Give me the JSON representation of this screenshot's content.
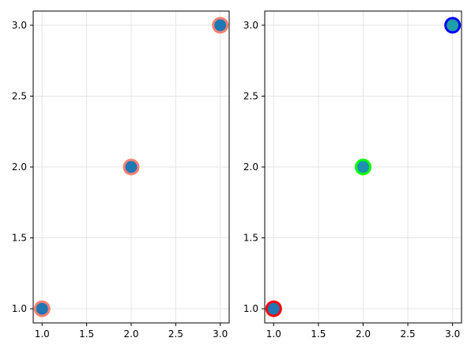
{
  "chart_data": [
    {
      "type": "scatter",
      "title": "",
      "xlabel": "",
      "ylabel": "",
      "xlim": [
        0.9,
        3.1
      ],
      "ylim": [
        0.9,
        3.1
      ],
      "grid": true,
      "x_ticks": [
        1.0,
        1.5,
        2.0,
        2.5,
        3.0
      ],
      "y_ticks": [
        1.0,
        1.5,
        2.0,
        2.5,
        3.0
      ],
      "x_tick_labels": [
        "1.0",
        "1.5",
        "2.0",
        "2.5",
        "3.0"
      ],
      "y_tick_labels": [
        "1.0",
        "1.5",
        "2.0",
        "2.5",
        "3.0"
      ],
      "series": [
        {
          "x": [
            1,
            2,
            3
          ],
          "y": [
            1,
            2,
            3
          ],
          "fill_color": "#1f77b4",
          "stroke_colors": [
            "#fa8072",
            "#fa8072",
            "#fa8072"
          ]
        }
      ]
    },
    {
      "type": "scatter",
      "title": "",
      "xlabel": "",
      "ylabel": "",
      "xlim": [
        0.9,
        3.1
      ],
      "ylim": [
        0.9,
        3.1
      ],
      "grid": true,
      "x_ticks": [
        1.0,
        1.5,
        2.0,
        2.5,
        3.0
      ],
      "y_ticks": [
        1.0,
        1.5,
        2.0,
        2.5,
        3.0
      ],
      "x_tick_labels": [
        "1.0",
        "1.5",
        "2.0",
        "2.5",
        "3.0"
      ],
      "y_tick_labels": [
        "1.0",
        "1.5",
        "2.0",
        "2.5",
        "3.0"
      ],
      "series": [
        {
          "x": [
            1,
            2,
            3
          ],
          "y": [
            1,
            2,
            3
          ],
          "fill_colors": [
            "#1f77b4",
            "#1f8fb4",
            "#1f9fa6"
          ],
          "stroke_colors": [
            "#ff0000",
            "#00ff00",
            "#0000ff"
          ]
        }
      ]
    }
  ]
}
